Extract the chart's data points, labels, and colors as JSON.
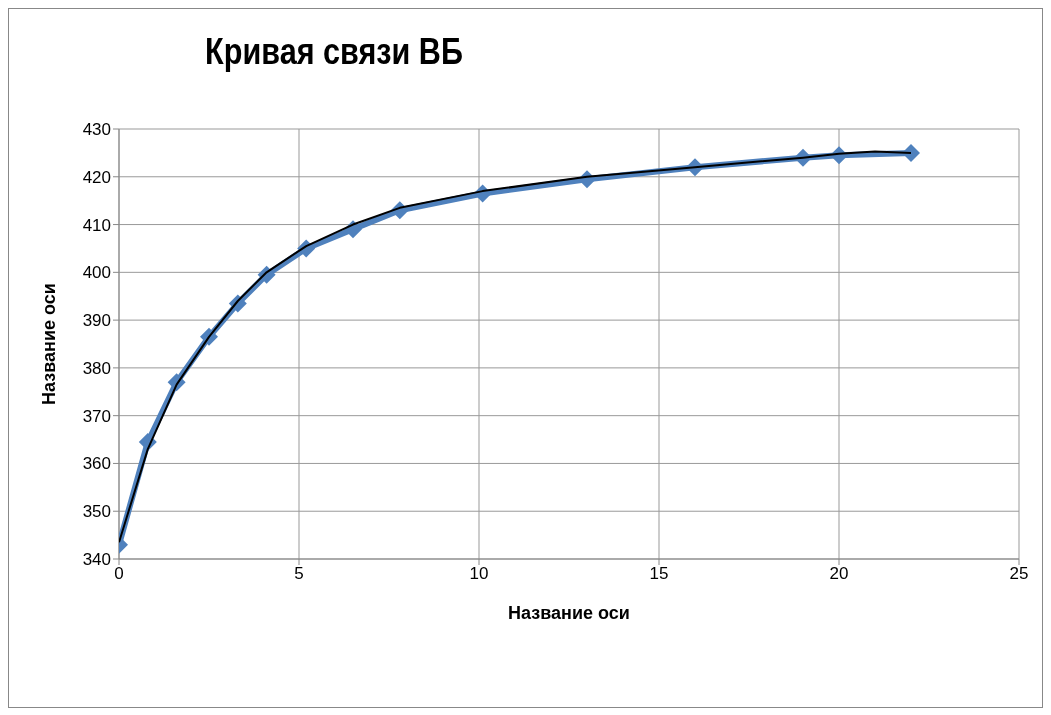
{
  "chart_data": {
    "type": "line",
    "title": "Кривая связи ВБ",
    "xlabel": "Название оси",
    "ylabel": "Название оси",
    "xlim": [
      0,
      25
    ],
    "xticks": [
      0,
      5,
      10,
      15,
      20,
      25
    ],
    "ylim": [
      340,
      430
    ],
    "yticks": [
      340,
      350,
      360,
      370,
      380,
      390,
      400,
      410,
      420,
      430
    ],
    "grid": true,
    "legend": false,
    "series": [
      {
        "color": "#4f81bd",
        "marker": "diamond",
        "x": [
          0,
          0.8,
          1.6,
          2.5,
          3.3,
          4.1,
          5.2,
          6.5,
          7.8,
          10.1,
          13,
          16,
          19,
          20,
          22
        ],
        "values": [
          343,
          364.5,
          377,
          386.5,
          393.5,
          399.5,
          405,
          409,
          413,
          416.5,
          419.5,
          422,
          424,
          424.5,
          425
        ]
      },
      {
        "type": "line",
        "color": "#000000",
        "marker": "none",
        "x": [
          0,
          0.8,
          1.6,
          2.5,
          3.3,
          4.1,
          5.2,
          6.5,
          7.8,
          10.1,
          13,
          16,
          19,
          20,
          21,
          22
        ],
        "values": [
          343.5,
          363,
          376.5,
          386.5,
          394,
          400,
          405.5,
          410,
          413.5,
          417,
          420,
          422,
          424,
          424.8,
          425.3,
          425
        ]
      }
    ]
  }
}
